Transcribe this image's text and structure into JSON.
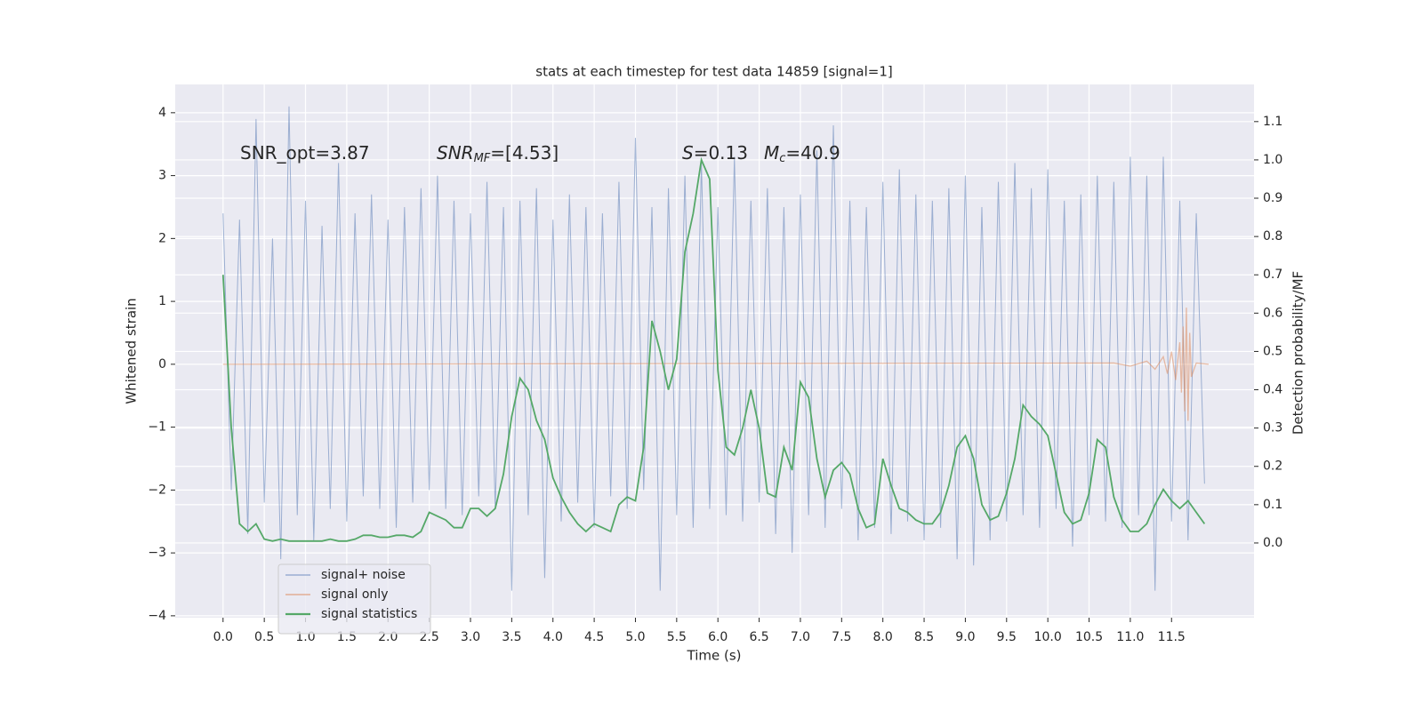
{
  "chart_data": {
    "type": "line",
    "title": "stats at each timestep for test data 14859 [signal=1]",
    "x_label": "Time (s)",
    "y_label": "Whitened strain",
    "y2_label": "Detection probability/MF",
    "annotations": [
      [
        "SNR_opt=3.87"
      ],
      [
        "SNR",
        "MF",
        "=[4.53]"
      ],
      [
        "S",
        "=0.13"
      ],
      [
        "M",
        "c",
        "=40.9"
      ]
    ],
    "xlim": [
      -0.58,
      12.5
    ],
    "ylim": [
      -4.03,
      4.45
    ],
    "y2lim": [
      -0.195,
      1.197
    ],
    "xticks": [
      {
        "value": 0,
        "label": "0.0"
      },
      {
        "value": 0.5,
        "label": "0.5"
      },
      {
        "value": 1,
        "label": "1.0"
      },
      {
        "value": 1.5,
        "label": "1.5"
      },
      {
        "value": 2,
        "label": "2.0"
      },
      {
        "value": 2.5,
        "label": "2.5"
      },
      {
        "value": 3,
        "label": "3.0"
      },
      {
        "value": 3.5,
        "label": "3.5"
      },
      {
        "value": 4,
        "label": "4.0"
      },
      {
        "value": 4.5,
        "label": "4.5"
      },
      {
        "value": 5,
        "label": "5.0"
      },
      {
        "value": 5.5,
        "label": "5.5"
      },
      {
        "value": 6,
        "label": "6.0"
      },
      {
        "value": 6.5,
        "label": "6.5"
      },
      {
        "value": 7,
        "label": "7.0"
      },
      {
        "value": 7.5,
        "label": "7.5"
      },
      {
        "value": 8,
        "label": "8.0"
      },
      {
        "value": 8.5,
        "label": "8.5"
      },
      {
        "value": 9,
        "label": "9.0"
      },
      {
        "value": 9.5,
        "label": "9.5"
      },
      {
        "value": 10,
        "label": "10.0"
      },
      {
        "value": 10.5,
        "label": "10.5"
      },
      {
        "value": 11,
        "label": "11.0"
      },
      {
        "value": 11.5,
        "label": "11.5"
      }
    ],
    "yticks": [
      {
        "value": -4,
        "label": "−4"
      },
      {
        "value": -3,
        "label": "−3"
      },
      {
        "value": -2,
        "label": "−2"
      },
      {
        "value": -1,
        "label": "−1"
      },
      0,
      1,
      2,
      3,
      4
    ],
    "y2ticks": [
      {
        "value": 0,
        "label": "0.0"
      },
      {
        "value": 0.1,
        "label": "0.1"
      },
      {
        "value": 0.2,
        "label": "0.2"
      },
      {
        "value": 0.3,
        "label": "0.3"
      },
      {
        "value": 0.4,
        "label": "0.4"
      },
      {
        "value": 0.5,
        "label": "0.5"
      },
      {
        "value": 0.6,
        "label": "0.6"
      },
      {
        "value": 0.7,
        "label": "0.7"
      },
      {
        "value": 0.8,
        "label": "0.8"
      },
      {
        "value": 0.9,
        "label": "0.9"
      },
      {
        "value": 1,
        "label": "1.0"
      },
      {
        "value": 1.1,
        "label": "1.1"
      }
    ],
    "grid": true,
    "legend": "lower left",
    "series": [
      {
        "name": "signal+ noise",
        "color": "#4c72b0",
        "x": [
          0,
          0.1,
          0.2,
          0.3,
          0.4,
          0.5,
          0.6,
          0.7,
          0.8,
          0.9,
          1,
          1.1,
          1.2,
          1.3,
          1.4,
          1.5,
          1.6,
          1.7,
          1.8,
          1.9,
          2,
          2.1,
          2.2,
          2.3,
          2.4,
          2.5,
          2.6,
          2.7,
          2.8,
          2.9,
          3,
          3.1,
          3.2,
          3.3,
          3.4,
          3.5,
          3.6,
          3.7,
          3.8,
          3.9,
          4,
          4.1,
          4.2,
          4.3,
          4.4,
          4.5,
          4.6,
          4.7,
          4.8,
          4.9,
          5,
          5.1,
          5.2,
          5.3,
          5.4,
          5.5,
          5.6,
          5.7,
          5.8,
          5.9,
          6,
          6.1,
          6.2,
          6.3,
          6.4,
          6.5,
          6.6,
          6.7,
          6.8,
          6.9,
          7,
          7.1,
          7.2,
          7.3,
          7.4,
          7.5,
          7.6,
          7.7,
          7.8,
          7.9,
          8,
          8.1,
          8.2,
          8.3,
          8.4,
          8.5,
          8.6,
          8.7,
          8.8,
          8.9,
          9,
          9.1,
          9.2,
          9.3,
          9.4,
          9.5,
          9.6,
          9.7,
          9.8,
          9.9,
          10,
          10.1,
          10.2,
          10.3,
          10.4,
          10.5,
          10.6,
          10.7,
          10.8,
          10.9,
          11,
          11.1,
          11.2,
          11.3,
          11.4,
          11.5,
          11.6,
          11.7,
          11.8,
          11.9
        ],
        "values": [
          2.4,
          -2.0,
          2.3,
          -2.7,
          3.9,
          -2.2,
          2.0,
          -3.1,
          4.1,
          -2.4,
          2.6,
          -2.8,
          2.2,
          -2.3,
          3.2,
          -2.5,
          2.4,
          -2.1,
          2.7,
          -2.3,
          2.3,
          -2.6,
          2.5,
          -2.2,
          2.8,
          -2.0,
          3.0,
          -2.3,
          2.6,
          -2.4,
          2.4,
          -2.1,
          2.9,
          -2.3,
          2.5,
          -3.6,
          2.6,
          -2.4,
          2.8,
          -3.4,
          2.3,
          -2.5,
          2.7,
          -2.2,
          2.5,
          -2.6,
          2.4,
          -2.1,
          2.9,
          -2.3,
          3.6,
          -2.0,
          2.5,
          -3.6,
          2.8,
          -2.4,
          3.0,
          -2.6,
          3.2,
          -2.3,
          2.5,
          -2.4,
          3.3,
          -2.5,
          2.6,
          -2.2,
          2.8,
          -2.7,
          2.5,
          -3.0,
          2.7,
          -2.4,
          3.4,
          -2.6,
          3.8,
          -2.3,
          2.6,
          -2.8,
          2.5,
          -2.6,
          2.9,
          -2.7,
          3.1,
          -2.5,
          2.7,
          -2.8,
          2.6,
          -2.6,
          2.8,
          -3.1,
          3.0,
          -3.2,
          2.5,
          -2.8,
          2.9,
          -2.5,
          3.2,
          -2.4,
          2.8,
          -2.6,
          3.1,
          -2.3,
          2.6,
          -2.9,
          2.7,
          -2.4,
          3.0,
          -2.5,
          2.9,
          -2.6,
          3.3,
          -2.4,
          3.0,
          -3.6,
          3.3,
          -2.5,
          2.6,
          -2.8,
          2.4,
          -1.9
        ]
      },
      {
        "name": "signal only",
        "color": "#dd8452",
        "x": [
          0,
          10.8,
          11.0,
          11.2,
          11.3,
          11.4,
          11.45,
          11.5,
          11.55,
          11.6,
          11.62,
          11.64,
          11.66,
          11.68,
          11.7,
          11.72,
          11.74,
          11.8,
          11.95
        ],
        "values": [
          0,
          0.02,
          -0.03,
          0.05,
          -0.08,
          0.12,
          -0.15,
          0.2,
          -0.25,
          0.35,
          -0.45,
          0.6,
          -0.75,
          0.9,
          -0.9,
          0.5,
          -0.2,
          0.02,
          0
        ]
      },
      {
        "name": "signal statistics",
        "color": "#55a868",
        "axis": "y2",
        "x": [
          0,
          0.1,
          0.2,
          0.3,
          0.4,
          0.5,
          0.6,
          0.7,
          0.8,
          0.9,
          1,
          1.1,
          1.2,
          1.3,
          1.4,
          1.5,
          1.6,
          1.7,
          1.8,
          1.9,
          2,
          2.1,
          2.2,
          2.3,
          2.4,
          2.5,
          2.6,
          2.7,
          2.8,
          2.9,
          3,
          3.1,
          3.2,
          3.3,
          3.4,
          3.5,
          3.6,
          3.7,
          3.8,
          3.9,
          4,
          4.1,
          4.2,
          4.3,
          4.4,
          4.5,
          4.6,
          4.7,
          4.8,
          4.9,
          5,
          5.1,
          5.2,
          5.3,
          5.4,
          5.5,
          5.6,
          5.7,
          5.8,
          5.9,
          6,
          6.1,
          6.2,
          6.3,
          6.4,
          6.5,
          6.6,
          6.7,
          6.8,
          6.9,
          7,
          7.1,
          7.2,
          7.3,
          7.4,
          7.5,
          7.6,
          7.7,
          7.8,
          7.9,
          8,
          8.1,
          8.2,
          8.3,
          8.4,
          8.5,
          8.6,
          8.7,
          8.8,
          8.9,
          9,
          9.1,
          9.2,
          9.3,
          9.4,
          9.5,
          9.6,
          9.7,
          9.8,
          9.9,
          10,
          10.1,
          10.2,
          10.3,
          10.4,
          10.5,
          10.6,
          10.7,
          10.8,
          10.9,
          11,
          11.1,
          11.2,
          11.3,
          11.4,
          11.5,
          11.6,
          11.7,
          11.8,
          11.9
        ],
        "values": [
          0.7,
          0.3,
          0.05,
          0.03,
          0.05,
          0.01,
          0.005,
          0.01,
          0.005,
          0.005,
          0.005,
          0.005,
          0.005,
          0.01,
          0.005,
          0.005,
          0.01,
          0.02,
          0.02,
          0.015,
          0.015,
          0.02,
          0.02,
          0.015,
          0.03,
          0.08,
          0.07,
          0.06,
          0.04,
          0.04,
          0.09,
          0.09,
          0.07,
          0.09,
          0.18,
          0.33,
          0.43,
          0.4,
          0.32,
          0.27,
          0.17,
          0.12,
          0.08,
          0.05,
          0.03,
          0.05,
          0.04,
          0.03,
          0.1,
          0.12,
          0.11,
          0.25,
          0.58,
          0.5,
          0.4,
          0.48,
          0.76,
          0.86,
          1.0,
          0.95,
          0.45,
          0.25,
          0.23,
          0.3,
          0.4,
          0.3,
          0.13,
          0.12,
          0.25,
          0.19,
          0.42,
          0.38,
          0.22,
          0.12,
          0.19,
          0.21,
          0.18,
          0.09,
          0.04,
          0.05,
          0.22,
          0.15,
          0.09,
          0.08,
          0.06,
          0.05,
          0.05,
          0.08,
          0.15,
          0.25,
          0.28,
          0.22,
          0.1,
          0.06,
          0.07,
          0.13,
          0.22,
          0.36,
          0.33,
          0.31,
          0.28,
          0.18,
          0.08,
          0.05,
          0.06,
          0.13,
          0.27,
          0.25,
          0.12,
          0.06,
          0.03,
          0.03,
          0.05,
          0.1,
          0.14,
          0.11,
          0.09,
          0.11,
          0.08,
          0.05
        ]
      }
    ]
  }
}
